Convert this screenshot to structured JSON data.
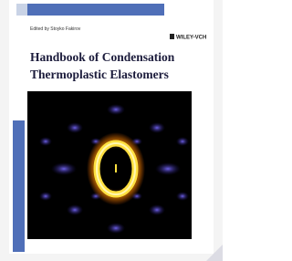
{
  "cover": {
    "editor": "Edited by Stoyko Fakirov",
    "publisher": "WILEY-VCH",
    "title_lines": [
      "Handbook of Condensation",
      "Thermoplastic Elastomers"
    ]
  }
}
